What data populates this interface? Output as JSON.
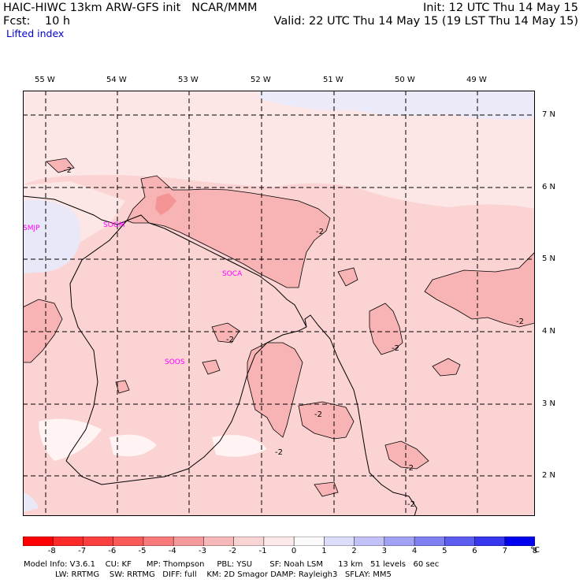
{
  "header": {
    "title_line1": "HAIC-HIWC 13km ARW-GFS init   NCAR/MMM",
    "fcst_label": "Fcst:    10 h",
    "init": "Init: 12 UTC Thu 14 May 15",
    "valid": "Valid: 22 UTC Thu 14 May 15 (19 LST Thu 14 May 15)",
    "field": "Lifted index"
  },
  "map": {
    "longitude_labels": [
      "55 W",
      "54 W",
      "53 W",
      "52 W",
      "51 W",
      "50 W",
      "49 W"
    ],
    "latitude_labels": [
      "7 N",
      "6 N",
      "5 N",
      "4 N",
      "3 N",
      "2 N"
    ],
    "station_labels": [
      "SMJP",
      "SOCA",
      "SOOM",
      "SOOS"
    ],
    "contour_label": "-2",
    "colors": {
      "background_light": "#fde6e6",
      "level_m1": "#fbd3d3",
      "level_m2": "#f8b4b4",
      "level_m3": "#f49494",
      "near_zero": "#fff3f3",
      "positive_1": "#e9e9fb",
      "station": "#ff00ff"
    }
  },
  "colorbar": {
    "labels": [
      "-8",
      "-7",
      "-6",
      "-5",
      "-4",
      "-3",
      "-2",
      "-1",
      "0",
      "1",
      "2",
      "3",
      "4",
      "5",
      "6",
      "7",
      "8"
    ],
    "unit": "°C",
    "colors": [
      "#ff0000",
      "#fe2a2a",
      "#fc4040",
      "#fa5a5a",
      "#f87a7a",
      "#f59a9a",
      "#f6b8b8",
      "#f9d4d4",
      "#fde9e9",
      "#fafafa",
      "#dcdcfb",
      "#c2c2f8",
      "#a2a2f5",
      "#8080f2",
      "#5c5cf0",
      "#3636ee",
      "#0000ee"
    ]
  },
  "footer": {
    "line1": "Model Info: V3.6.1    CU: KF      MP: Thompson     PBL: YSU       SF: Noah LSM      13 km   51 levels   60 sec",
    "line2": "LW: RRTMG    SW: RRTMG   DIFF: full    KM: 2D Smagor DAMP: Rayleigh3   SFLAY: MM5"
  }
}
